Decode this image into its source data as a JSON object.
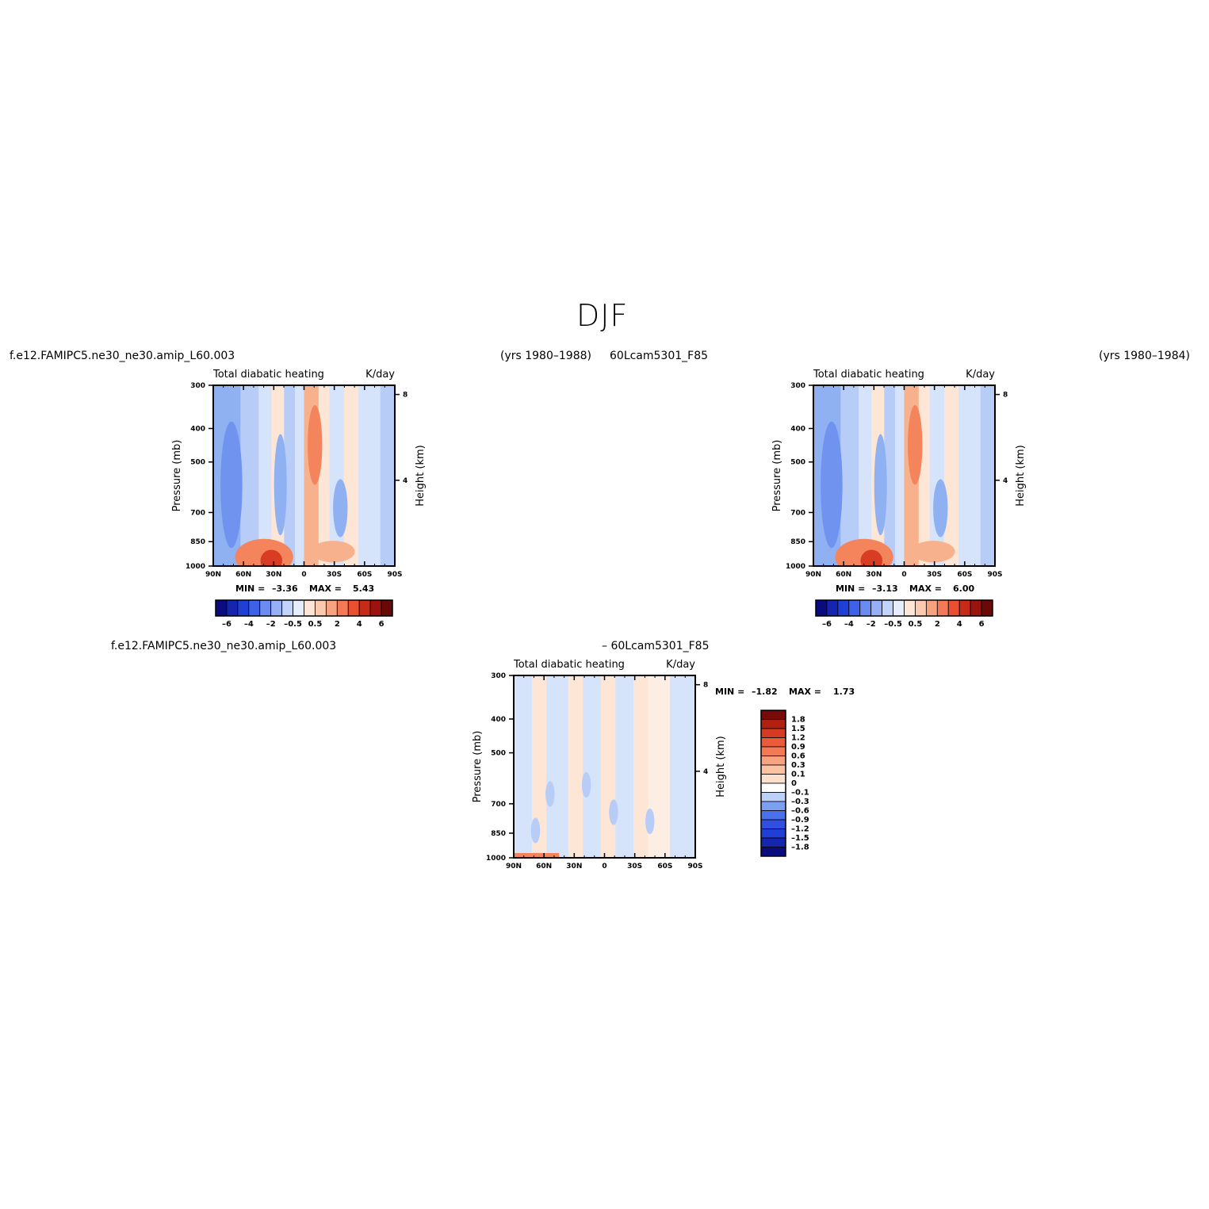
{
  "page": {
    "season": "DJF",
    "colors": {
      "bg": "#ffffff",
      "frame": "#000000"
    }
  },
  "headers": {
    "left_case": "f.e12.FAMIPC5.ne30_ne30.amip_L60.003",
    "left_years": "(yrs 1980–1988)",
    "right_case": "60Lcam5301_F85",
    "right_years": "(yrs 1980–1984)",
    "diff_case_a": "f.e12.FAMIPC5.ne30_ne30.amip_L60.003",
    "diff_case_b": "– 60Lcam5301_F85"
  },
  "chart_data": [
    {
      "id": "panel-left",
      "type": "heatmap",
      "title_left": "Total diabatic heating",
      "title_right": "K/day",
      "ylabel": "Pressure (mb)",
      "ylabel_right": "Height (km)",
      "x_ticks": [
        "90N",
        "60N",
        "30N",
        "0",
        "30S",
        "60S",
        "90S"
      ],
      "x_range": [
        90,
        -90
      ],
      "y_ticks": [
        "300",
        "400",
        "500",
        "700",
        "850",
        "1000"
      ],
      "y_range": [
        300,
        1000
      ],
      "y_scale": "log",
      "height_ticks": [
        "8",
        "4"
      ],
      "min_label": "MIN =",
      "min_value": "–3.36",
      "max_label": "MAX =",
      "max_value": "5.43",
      "colorbar": {
        "orientation": "horizontal",
        "colors": [
          "#0b0b80",
          "#1525b0",
          "#1f3fd6",
          "#3d62e8",
          "#6b8bf0",
          "#97b0f5",
          "#c3d4fa",
          "#e6eefd",
          "#fde6d6",
          "#fbc9ad",
          "#f8a37f",
          "#f47a55",
          "#e85030",
          "#c82a18",
          "#9a130f",
          "#6a0a08"
        ],
        "tick_labels": [
          "–6",
          "–4",
          "–2",
          "–0.5",
          "0.5",
          "2",
          "4",
          "6"
        ]
      }
    },
    {
      "id": "panel-right",
      "type": "heatmap",
      "title_left": "Total diabatic heating",
      "title_right": "K/day",
      "ylabel": "Pressure (mb)",
      "ylabel_right": "Height (km)",
      "x_ticks": [
        "90N",
        "60N",
        "30N",
        "0",
        "30S",
        "60S",
        "90S"
      ],
      "x_range": [
        90,
        -90
      ],
      "y_ticks": [
        "300",
        "400",
        "500",
        "700",
        "850",
        "1000"
      ],
      "y_range": [
        300,
        1000
      ],
      "y_scale": "log",
      "height_ticks": [
        "8",
        "4"
      ],
      "min_label": "MIN =",
      "min_value": "–3.13",
      "max_label": "MAX =",
      "max_value": "6.00",
      "colorbar": {
        "orientation": "horizontal",
        "colors": [
          "#0b0b80",
          "#1525b0",
          "#1f3fd6",
          "#3d62e8",
          "#6b8bf0",
          "#97b0f5",
          "#c3d4fa",
          "#e6eefd",
          "#fde6d6",
          "#fbc9ad",
          "#f8a37f",
          "#f47a55",
          "#e85030",
          "#c82a18",
          "#9a130f",
          "#6a0a08"
        ],
        "tick_labels": [
          "–6",
          "–4",
          "–2",
          "–0.5",
          "0.5",
          "2",
          "4",
          "6"
        ]
      }
    },
    {
      "id": "panel-diff",
      "type": "heatmap",
      "title_left": "Total diabatic heating",
      "title_right": "K/day",
      "ylabel": "Pressure (mb)",
      "ylabel_right": "Height (km)",
      "x_ticks": [
        "90N",
        "60N",
        "30N",
        "0",
        "30S",
        "60S",
        "90S"
      ],
      "x_range": [
        90,
        -90
      ],
      "y_ticks": [
        "300",
        "400",
        "500",
        "700",
        "850",
        "1000"
      ],
      "y_range": [
        300,
        1000
      ],
      "y_scale": "log",
      "height_ticks": [
        "8",
        "4"
      ],
      "min_label": "MIN =",
      "min_value": "–1.82",
      "max_label": "MAX =",
      "max_value": "1.73",
      "colorbar": {
        "orientation": "vertical",
        "colors": [
          "#0b0b80",
          "#1525b0",
          "#1f3fd6",
          "#2f4fe0",
          "#4a70ea",
          "#7b9ff2",
          "#bcd0fa",
          "#ffffff",
          "#fde0cc",
          "#fbc3a4",
          "#f8a37f",
          "#f47a55",
          "#eb5a3a",
          "#d63a20",
          "#b22010",
          "#7a0a08"
        ],
        "tick_labels": [
          "1.8",
          "1.5",
          "1.2",
          "0.9",
          "0.6",
          "0.3",
          "0.1",
          "0",
          "–0.1",
          "–0.3",
          "–0.6",
          "–0.9",
          "–1.2",
          "–1.5",
          "–1.8"
        ]
      }
    }
  ]
}
